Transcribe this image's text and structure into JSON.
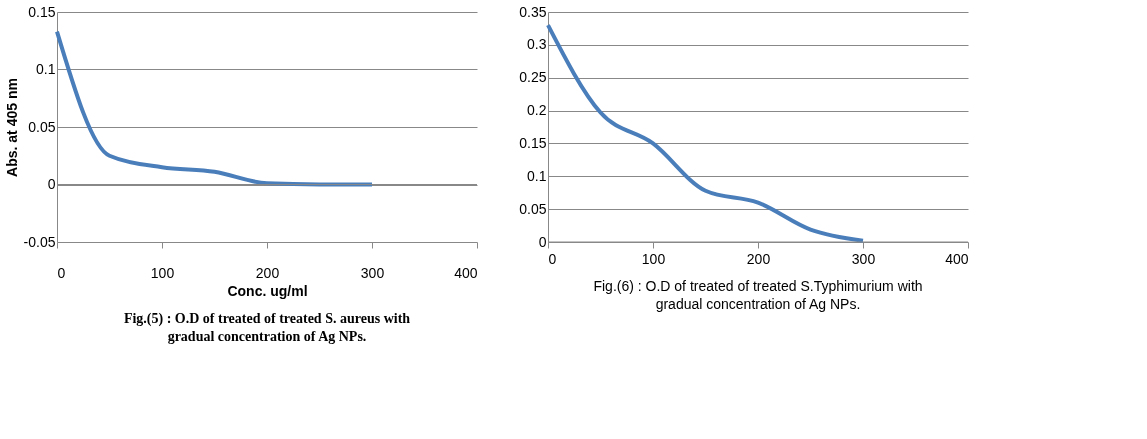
{
  "chart_data": [
    {
      "type": "line",
      "title": "Fig.(5) : O.D of treated of treated S. aureus with gradual concentration of Ag NPs.",
      "xlabel": "Conc. ug/ml",
      "ylabel": "Abs. at 405 nm",
      "x": [
        0,
        50,
        100,
        150,
        200,
        250,
        300
      ],
      "series": [
        {
          "color": "#4a7ebb",
          "values": [
            0.133,
            0.025,
            0.015,
            0.011,
            0.001,
            0,
            0
          ]
        }
      ],
      "xlim": [
        0,
        400
      ],
      "xticks": [
        0,
        100,
        200,
        300,
        400
      ],
      "ylim": [
        -0.05,
        0.15
      ],
      "yticks": [
        -0.05,
        0,
        0.05,
        0.1,
        0.15
      ],
      "grid": "y"
    },
    {
      "type": "line",
      "title": "Fig.(6) : O.D of treated of treated S.Typhimurium with gradual concentration of Ag NPs.",
      "x": [
        0,
        50,
        100,
        150,
        200,
        250,
        300
      ],
      "series": [
        {
          "color": "#4a7ebb",
          "values": [
            0.33,
            0.197,
            0.15,
            0.078,
            0.06,
            0.019,
            0.002
          ]
        }
      ],
      "xlim": [
        0,
        400
      ],
      "xticks": [
        0,
        100,
        200,
        300,
        400
      ],
      "ylim": [
        0,
        0.35
      ],
      "yticks": [
        0,
        0.05,
        0.1,
        0.15,
        0.2,
        0.25,
        0.3,
        0.35
      ],
      "grid": "y"
    }
  ]
}
